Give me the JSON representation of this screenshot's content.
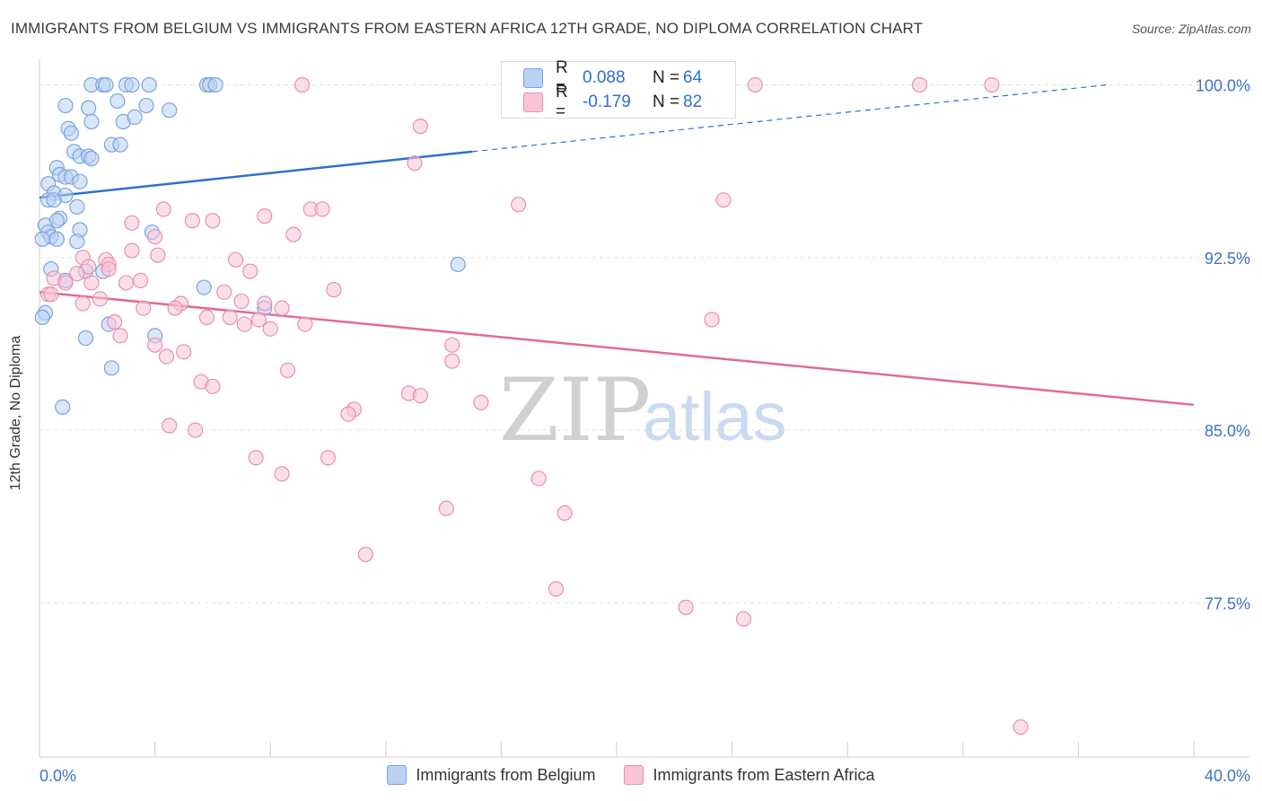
{
  "title": "IMMIGRANTS FROM BELGIUM VS IMMIGRANTS FROM EASTERN AFRICA 12TH GRADE, NO DIPLOMA CORRELATION CHART",
  "source": "Source: ZipAtlas.com",
  "watermark": {
    "zip": "ZIP",
    "atlas": "atlas"
  },
  "legend": {
    "r_label": "R =",
    "n_label": "N =",
    "rows": [
      {
        "r": "0.088",
        "n": "64",
        "fill": "#b9d1f3",
        "stroke": "#7aa3e0"
      },
      {
        "r": "-0.179",
        "n": "82",
        "fill": "#f8c4d6",
        "stroke": "#e98fb0"
      }
    ]
  },
  "chart_data": {
    "type": "scatter",
    "title": "IMMIGRANTS FROM BELGIUM VS IMMIGRANTS FROM EASTERN AFRICA 12TH GRADE, NO DIPLOMA CORRELATION CHART",
    "xlabel": "",
    "ylabel": "12th Grade, No Diploma",
    "xlim": [
      0,
      40
    ],
    "ylim": [
      70.8,
      100.8
    ],
    "x_tick_labels": [
      "0.0%",
      "40.0%"
    ],
    "y_ticks": [
      77.5,
      85.0,
      92.5,
      100.0
    ],
    "y_tick_labels": [
      "77.5%",
      "85.0%",
      "92.5%",
      "100.0%"
    ],
    "grid": "horizontal dashed",
    "series": [
      {
        "name": "Immigrants from Belgium",
        "color": "#7aa3e0",
        "fill": "#b9d1f3",
        "trend": {
          "x": [
            0,
            15
          ],
          "y": [
            95.1,
            97.1
          ],
          "dashed_to": [
            37,
            100.0
          ]
        },
        "points": [
          [
            1.8,
            100
          ],
          [
            2.2,
            100
          ],
          [
            2.3,
            100
          ],
          [
            3.0,
            100
          ],
          [
            3.2,
            100
          ],
          [
            3.8,
            100
          ],
          [
            5.8,
            100
          ],
          [
            5.9,
            100
          ],
          [
            6.1,
            100
          ],
          [
            0.9,
            99.1
          ],
          [
            1.7,
            99.0
          ],
          [
            2.7,
            99.3
          ],
          [
            3.7,
            99.1
          ],
          [
            4.5,
            98.9
          ],
          [
            1.8,
            98.4
          ],
          [
            2.9,
            98.4
          ],
          [
            3.3,
            98.6
          ],
          [
            1.0,
            98.1
          ],
          [
            1.1,
            97.9
          ],
          [
            2.5,
            97.4
          ],
          [
            2.8,
            97.4
          ],
          [
            1.2,
            97.1
          ],
          [
            1.4,
            96.9
          ],
          [
            1.7,
            96.9
          ],
          [
            1.8,
            96.8
          ],
          [
            0.6,
            96.4
          ],
          [
            0.7,
            96.1
          ],
          [
            0.9,
            96.0
          ],
          [
            1.1,
            96.0
          ],
          [
            1.4,
            95.8
          ],
          [
            0.3,
            95.7
          ],
          [
            0.5,
            95.3
          ],
          [
            0.9,
            95.2
          ],
          [
            0.3,
            95.0
          ],
          [
            0.5,
            95.0
          ],
          [
            1.3,
            94.7
          ],
          [
            0.7,
            94.2
          ],
          [
            0.6,
            94.1
          ],
          [
            0.2,
            93.9
          ],
          [
            0.3,
            93.6
          ],
          [
            1.4,
            93.7
          ],
          [
            0.4,
            93.4
          ],
          [
            0.6,
            93.3
          ],
          [
            1.3,
            93.2
          ],
          [
            0.1,
            93.3
          ],
          [
            3.9,
            93.6
          ],
          [
            14.5,
            92.2
          ],
          [
            0.4,
            92.0
          ],
          [
            0.9,
            91.5
          ],
          [
            1.6,
            91.9
          ],
          [
            2.2,
            91.9
          ],
          [
            5.7,
            91.2
          ],
          [
            7.8,
            90.3
          ],
          [
            0.2,
            90.1
          ],
          [
            2.4,
            89.6
          ],
          [
            4.0,
            89.1
          ],
          [
            1.6,
            89.0
          ],
          [
            2.5,
            87.7
          ],
          [
            0.8,
            86.0
          ],
          [
            0.1,
            89.9
          ]
        ]
      },
      {
        "name": "Immigrants from Eastern Africa",
        "color": "#e98fb0",
        "fill": "#f8c4d6",
        "trend": {
          "x": [
            0,
            40
          ],
          "y": [
            91.0,
            86.1
          ]
        },
        "points": [
          [
            9.1,
            100
          ],
          [
            24.8,
            100
          ],
          [
            30.5,
            100
          ],
          [
            33.0,
            100
          ],
          [
            13.2,
            98.2
          ],
          [
            13.0,
            96.6
          ],
          [
            16.6,
            94.8
          ],
          [
            23.7,
            95.0
          ],
          [
            4.3,
            94.6
          ],
          [
            9.4,
            94.6
          ],
          [
            9.8,
            94.6
          ],
          [
            7.8,
            94.3
          ],
          [
            5.3,
            94.1
          ],
          [
            6.0,
            94.1
          ],
          [
            3.2,
            94.0
          ],
          [
            8.8,
            93.5
          ],
          [
            4.0,
            93.4
          ],
          [
            3.2,
            92.8
          ],
          [
            4.1,
            92.6
          ],
          [
            6.8,
            92.4
          ],
          [
            2.3,
            92.4
          ],
          [
            1.5,
            92.5
          ],
          [
            2.4,
            92.2
          ],
          [
            1.7,
            92.1
          ],
          [
            2.4,
            92.0
          ],
          [
            7.3,
            91.9
          ],
          [
            1.3,
            91.8
          ],
          [
            0.5,
            91.6
          ],
          [
            0.9,
            91.4
          ],
          [
            3.5,
            91.5
          ],
          [
            3.0,
            91.4
          ],
          [
            1.8,
            91.4
          ],
          [
            10.2,
            91.1
          ],
          [
            6.4,
            91.0
          ],
          [
            0.3,
            90.9
          ],
          [
            2.1,
            90.7
          ],
          [
            1.5,
            90.5
          ],
          [
            7.0,
            90.6
          ],
          [
            4.9,
            90.5
          ],
          [
            7.8,
            90.5
          ],
          [
            4.7,
            90.3
          ],
          [
            3.6,
            90.3
          ],
          [
            8.4,
            90.3
          ],
          [
            5.8,
            89.9
          ],
          [
            6.6,
            89.9
          ],
          [
            7.1,
            89.6
          ],
          [
            7.6,
            89.8
          ],
          [
            9.2,
            89.6
          ],
          [
            23.3,
            89.8
          ],
          [
            2.6,
            89.7
          ],
          [
            2.8,
            89.1
          ],
          [
            8.0,
            89.4
          ],
          [
            4.0,
            88.7
          ],
          [
            5.0,
            88.4
          ],
          [
            14.3,
            88.7
          ],
          [
            4.4,
            88.2
          ],
          [
            14.3,
            88.0
          ],
          [
            8.6,
            87.6
          ],
          [
            5.6,
            87.1
          ],
          [
            6.0,
            86.9
          ],
          [
            12.8,
            86.6
          ],
          [
            13.2,
            86.5
          ],
          [
            15.3,
            86.2
          ],
          [
            10.9,
            85.9
          ],
          [
            10.7,
            85.7
          ],
          [
            4.5,
            85.2
          ],
          [
            5.4,
            85.0
          ],
          [
            7.5,
            83.8
          ],
          [
            10.0,
            83.8
          ],
          [
            8.4,
            83.1
          ],
          [
            17.3,
            82.9
          ],
          [
            14.1,
            81.6
          ],
          [
            18.2,
            81.4
          ],
          [
            11.3,
            79.6
          ],
          [
            17.9,
            78.1
          ],
          [
            22.4,
            77.3
          ],
          [
            24.4,
            76.8
          ],
          [
            34.0,
            72.1
          ],
          [
            0.4,
            90.9
          ]
        ]
      }
    ]
  }
}
